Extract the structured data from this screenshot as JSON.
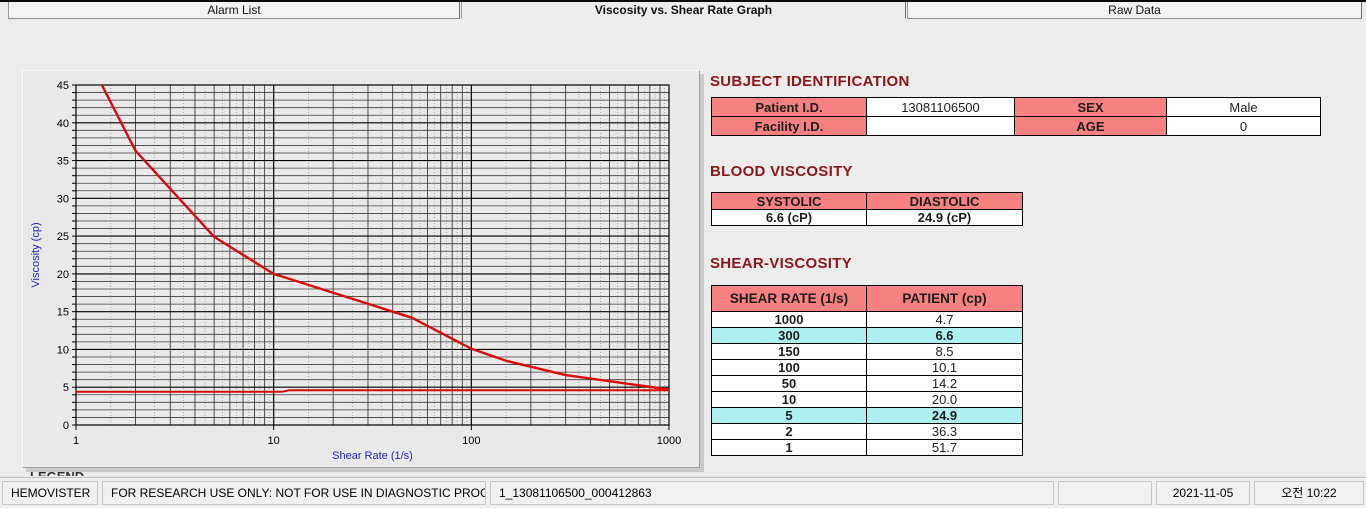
{
  "tabs": [
    {
      "label": "Alarm List",
      "active": false
    },
    {
      "label": "Viscosity vs. Shear Rate Graph",
      "active": true
    },
    {
      "label": "Raw Data",
      "active": false
    }
  ],
  "chart_data": {
    "type": "line",
    "title": "",
    "xlabel": "Shear Rate (1/s)",
    "ylabel": "Viscosity (cp)",
    "x_scale": "log",
    "xlim": [
      1,
      1000
    ],
    "ylim": [
      0,
      45
    ],
    "x_ticks": [
      1,
      10,
      100,
      1000
    ],
    "y_tick_step": 5,
    "grid": "dense: 1-cp horizontal lines, log minor verticals with dotted half-steps",
    "axis_label_color": "#2323bb",
    "line_color": "#d90b0b",
    "series": [
      {
        "name": "patient-viscosity-curve",
        "x": [
          1,
          2,
          5,
          10,
          50,
          100,
          150,
          300,
          1000
        ],
        "y": [
          51.7,
          36.3,
          24.9,
          20.0,
          14.2,
          10.1,
          8.5,
          6.6,
          4.7
        ]
      },
      {
        "name": "baseline-reference-line",
        "x": [
          1,
          11,
          12,
          1000
        ],
        "y": [
          4.4,
          4.4,
          4.6,
          4.6
        ]
      }
    ]
  },
  "subject": {
    "title": "SUBJECT IDENTIFICATION",
    "rows": [
      [
        {
          "t": "Patient I.D.",
          "h": true
        },
        {
          "t": "13081106500",
          "h": false
        },
        {
          "t": "SEX",
          "h": true
        },
        {
          "t": "Male",
          "h": false
        }
      ],
      [
        {
          "t": "Facility I.D.",
          "h": true
        },
        {
          "t": "",
          "h": false
        },
        {
          "t": "AGE",
          "h": true
        },
        {
          "t": "0",
          "h": false
        }
      ]
    ]
  },
  "blood": {
    "title": "BLOOD VISCOSITY",
    "headers": [
      "SYSTOLIC",
      "DIASTOLIC"
    ],
    "values": [
      "6.6 (cP)",
      "24.9 (cP)"
    ]
  },
  "shear": {
    "title": "SHEAR-VISCOSITY",
    "headers": [
      "SHEAR RATE (1/s)",
      "PATIENT (cp)"
    ],
    "rows": [
      {
        "rate": "1000",
        "value": "4.7",
        "highlight": false
      },
      {
        "rate": "300",
        "value": "6.6",
        "highlight": true
      },
      {
        "rate": "150",
        "value": "8.5",
        "highlight": false
      },
      {
        "rate": "100",
        "value": "10.1",
        "highlight": false
      },
      {
        "rate": "50",
        "value": "14.2",
        "highlight": false
      },
      {
        "rate": "10",
        "value": "20.0",
        "highlight": false
      },
      {
        "rate": "5",
        "value": "24.9",
        "highlight": true
      },
      {
        "rate": "2",
        "value": "36.3",
        "highlight": false
      },
      {
        "rate": "1",
        "value": "51.7",
        "highlight": false
      }
    ]
  },
  "legend_clipped": "LEGEND",
  "status_bar": {
    "cells": [
      {
        "text": "HEMOVISTER",
        "name": "app-name"
      },
      {
        "text": "FOR RESEARCH USE ONLY: NOT FOR USE IN DIAGNOSTIC PROCEDURES",
        "name": "disclaimer"
      },
      {
        "text": "1_13081106500_000412863",
        "name": "record-id"
      },
      {
        "text": "",
        "name": "empty"
      },
      {
        "text": "2021-11-05",
        "name": "date"
      },
      {
        "text": "오전 10:22",
        "name": "time"
      }
    ]
  },
  "colors": {
    "section_title_red": "#8b1616",
    "table_header_pink": "#f58181",
    "highlight_cyan": "#aef0f0",
    "curve_red": "#d90b0b",
    "axis_label_blue": "#2323bb"
  }
}
